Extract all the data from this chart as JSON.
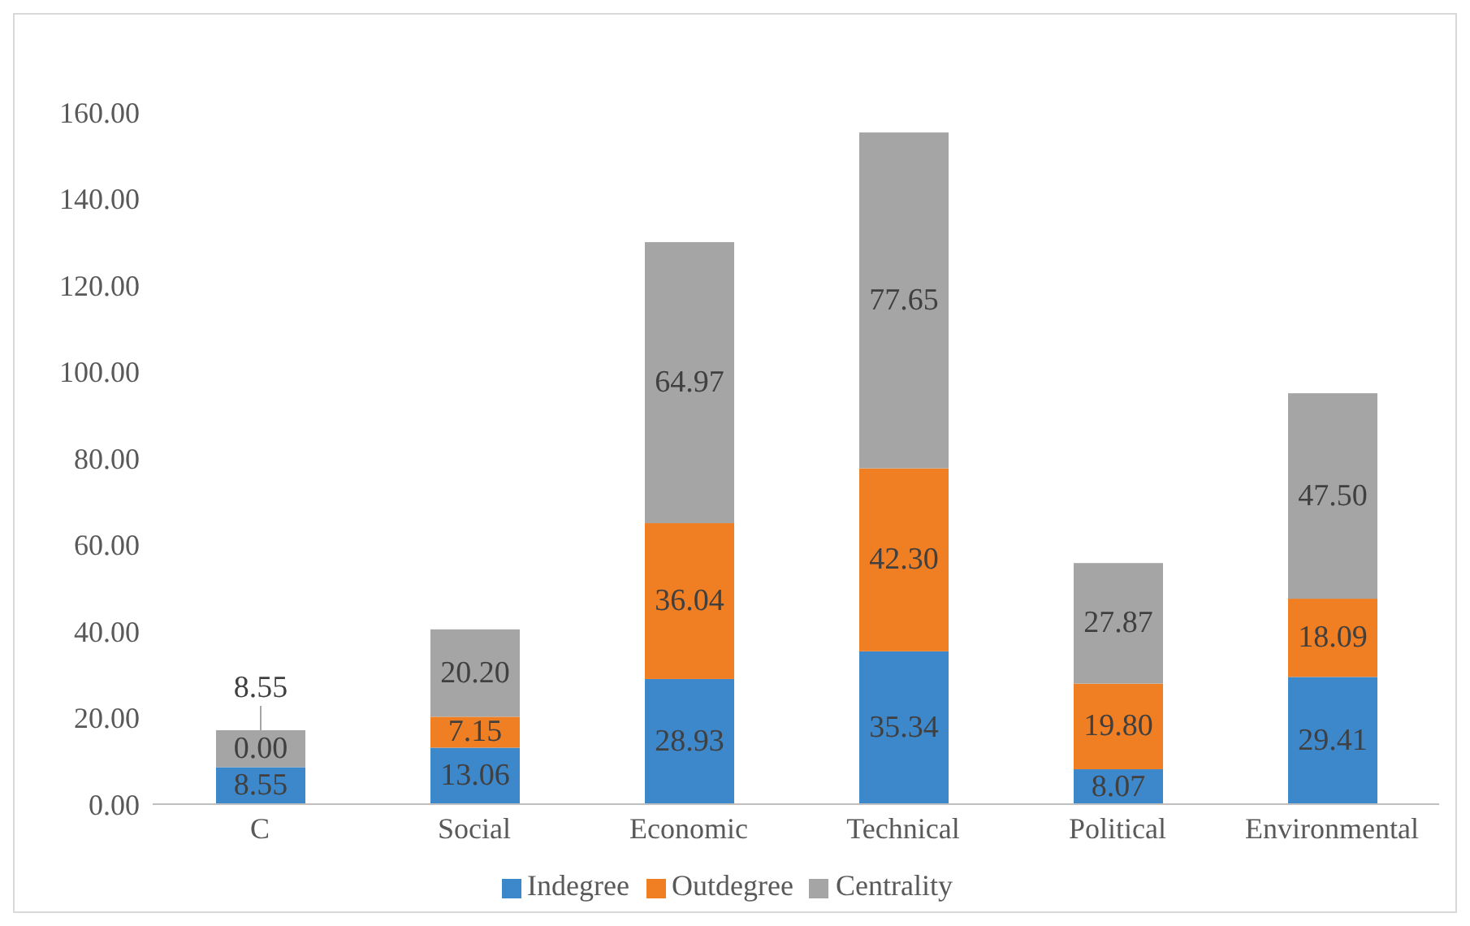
{
  "chart_data": {
    "type": "bar",
    "stacked": true,
    "categories": [
      "C",
      "Social",
      "Economic",
      "Technical",
      "Political",
      "Environmental"
    ],
    "series": [
      {
        "name": "Indegree",
        "color": "#3d87cb",
        "values": [
          8.55,
          13.06,
          28.93,
          35.34,
          8.07,
          29.41
        ],
        "value_labels": [
          "8.55",
          "13.06",
          "28.93",
          "35.34",
          "8.07",
          "29.41"
        ]
      },
      {
        "name": "Outdegree",
        "color": "#f07e23",
        "values": [
          0.0,
          7.15,
          36.04,
          42.3,
          19.8,
          18.09
        ],
        "value_labels": [
          "0.00",
          "7.15",
          "36.04",
          "42.30",
          "19.80",
          "18.09"
        ]
      },
      {
        "name": "Centrality",
        "color": "#a5a5a5",
        "values": [
          8.55,
          20.2,
          64.97,
          77.65,
          27.87,
          47.5
        ],
        "value_labels": [
          "8.55",
          "20.20",
          "64.97",
          "77.65",
          "27.87",
          "47.50"
        ]
      }
    ],
    "ylim": [
      0,
      160
    ],
    "yticks": [
      {
        "value": 0,
        "label": "0.00"
      },
      {
        "value": 20,
        "label": "20.00"
      },
      {
        "value": 40,
        "label": "40.00"
      },
      {
        "value": 60,
        "label": "60.00"
      },
      {
        "value": 80,
        "label": "80.00"
      },
      {
        "value": 100,
        "label": "100.00"
      },
      {
        "value": 120,
        "label": "120.00"
      },
      {
        "value": 140,
        "label": "140.00"
      },
      {
        "value": 160,
        "label": "160.00"
      }
    ],
    "grid": false,
    "legend": "bottom"
  }
}
